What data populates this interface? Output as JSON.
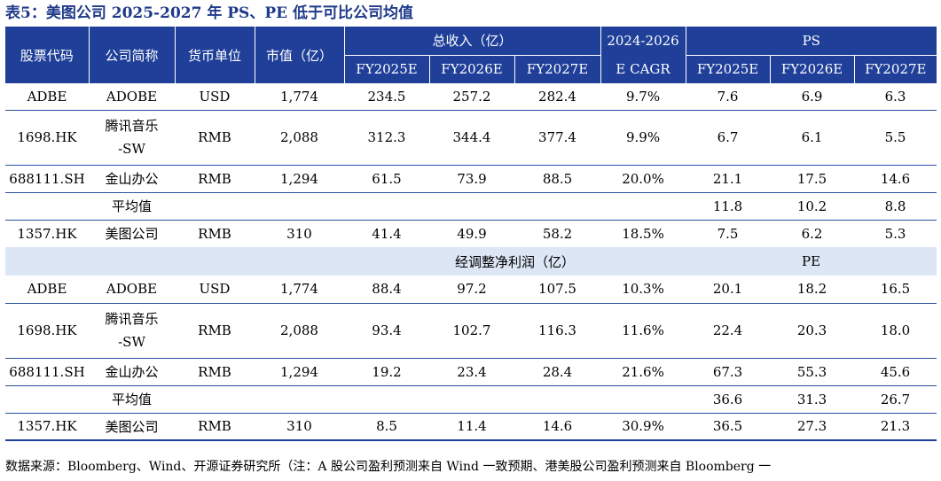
{
  "title": "表5：美图公司 2025-2027 年 PS、PE 低于可比公司均值",
  "headers": {
    "code": "股票代码",
    "name": "公司简称",
    "currency": "货币单位",
    "mktcap": "市值（亿）",
    "revenue_group": "总收入（亿）",
    "cagr_top": "2024-2026",
    "cagr_bottom": "E CAGR",
    "ps_group": "PS",
    "years": [
      "FY2025E",
      "FY2026E",
      "FY2027E"
    ]
  },
  "revenue_rows": [
    {
      "code": "ADBE",
      "name": "ADOBE",
      "currency": "USD",
      "mktcap": "1,774",
      "v": [
        "234.5",
        "257.2",
        "282.4"
      ],
      "cagr": "9.7%",
      "m": [
        "7.6",
        "6.9",
        "6.3"
      ]
    },
    {
      "code": "1698.HK",
      "name_top": "腾讯音乐",
      "name_bottom": "-SW",
      "currency": "RMB",
      "mktcap": "2,088",
      "v": [
        "312.3",
        "344.4",
        "377.4"
      ],
      "cagr": "9.9%",
      "m": [
        "6.7",
        "6.1",
        "5.5"
      ]
    },
    {
      "code": "688111.SH",
      "name": "金山办公",
      "currency": "RMB",
      "mktcap": "1,294",
      "v": [
        "61.5",
        "73.9",
        "88.5"
      ],
      "cagr": "20.0%",
      "m": [
        "21.1",
        "17.5",
        "14.6"
      ]
    },
    {
      "label": "平均值",
      "m": [
        "11.8",
        "10.2",
        "8.8"
      ]
    },
    {
      "code": "1357.HK",
      "name": "美图公司",
      "currency": "RMB",
      "mktcap": "310",
      "v": [
        "41.4",
        "49.9",
        "58.2"
      ],
      "cagr": "18.5%",
      "m": [
        "7.5",
        "6.2",
        "5.3"
      ]
    }
  ],
  "band": {
    "profit": "经调整净利润（亿）",
    "pe": "PE"
  },
  "profit_rows": [
    {
      "code": "ADBE",
      "name": "ADOBE",
      "currency": "USD",
      "mktcap": "1,774",
      "v": [
        "88.4",
        "97.2",
        "107.5"
      ],
      "cagr": "10.3%",
      "m": [
        "20.1",
        "18.2",
        "16.5"
      ]
    },
    {
      "code": "1698.HK",
      "name_top": "腾讯音乐",
      "name_bottom": "-SW",
      "currency": "RMB",
      "mktcap": "2,088",
      "v": [
        "93.4",
        "102.7",
        "116.3"
      ],
      "cagr": "11.6%",
      "m": [
        "22.4",
        "20.3",
        "18.0"
      ]
    },
    {
      "code": "688111.SH",
      "name": "金山办公",
      "currency": "RMB",
      "mktcap": "1,294",
      "v": [
        "19.2",
        "23.4",
        "28.4"
      ],
      "cagr": "21.6%",
      "m": [
        "67.3",
        "55.3",
        "45.6"
      ]
    },
    {
      "label": "平均值",
      "m": [
        "36.6",
        "31.3",
        "26.7"
      ]
    },
    {
      "code": "1357.HK",
      "name": "美图公司",
      "currency": "RMB",
      "mktcap": "310",
      "v": [
        "8.5",
        "11.4",
        "14.6"
      ],
      "cagr": "30.9%",
      "m": [
        "36.5",
        "27.3",
        "21.3"
      ]
    }
  ],
  "source": "数据来源：Bloomberg、Wind、开源证券研究所（注：A 股公司盈利预测来自 Wind 一致预期、港美股公司盈利预测来自 Bloomberg 一",
  "colors": {
    "header_bg": "#1f3f99",
    "band_bg": "#dce6f5",
    "title": "#1f3a8a"
  }
}
